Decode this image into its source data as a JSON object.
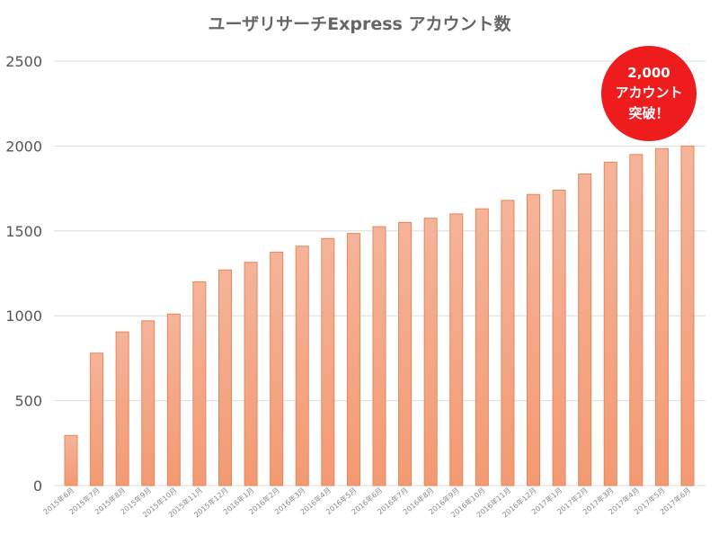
{
  "chart_data": {
    "type": "bar",
    "title": "ユーザリサーチExpress アカウント数",
    "xlabel": "",
    "ylabel": "",
    "ylim": [
      0,
      2500
    ],
    "yticks": [
      0,
      500,
      1000,
      1500,
      2000,
      2500
    ],
    "grid": true,
    "categories": [
      "2015年6月",
      "2015年7月",
      "2015年8月",
      "2015年9月",
      "2015年10月",
      "2015年11月",
      "2015年12月",
      "2016年1月",
      "2016年2月",
      "2016年3月",
      "2016年4月",
      "2016年5月",
      "2016年6月",
      "2016年7月",
      "2016年8月",
      "2016年9月",
      "2016年10月",
      "2016年11月",
      "2016年12月",
      "2017年1月",
      "2017年2月",
      "2017年3月",
      "2017年4月",
      "2017年5月",
      "2017年6月"
    ],
    "values": [
      295,
      780,
      905,
      970,
      1010,
      1200,
      1270,
      1315,
      1375,
      1410,
      1455,
      1485,
      1525,
      1550,
      1575,
      1600,
      1630,
      1680,
      1715,
      1740,
      1835,
      1905,
      1950,
      1985,
      2000
    ],
    "colors": {
      "bar_top": "#f5b49a",
      "bar_bottom": "#f39a72",
      "bar_stroke": "#e8865a",
      "badge": "#ee1c1c"
    },
    "annotation": {
      "lines": [
        "2,000",
        "アカウント",
        "突破！"
      ]
    }
  }
}
